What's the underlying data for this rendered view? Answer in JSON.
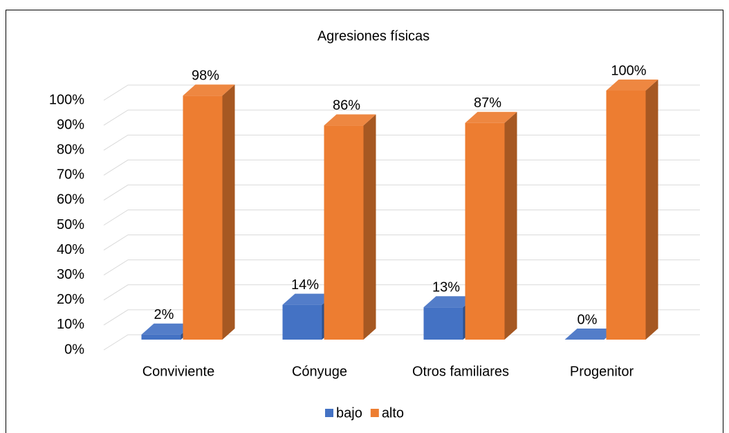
{
  "chart_data": {
    "type": "bar3d",
    "title": "Agresiones físicas",
    "categories": [
      "Conviviente",
      "Cónyuge",
      "Otros familiares",
      "Progenitor"
    ],
    "series": [
      {
        "name": "bajo",
        "color": "#4472c4",
        "values": [
          2,
          14,
          13,
          0
        ],
        "value_labels": [
          "2%",
          "14%",
          "13%",
          "0%"
        ]
      },
      {
        "name": "alto",
        "color": "#ed7d31",
        "values": [
          98,
          86,
          87,
          100
        ],
        "value_labels": [
          "98%",
          "86%",
          "87%",
          "100%"
        ]
      }
    ],
    "ylim": [
      0,
      100
    ],
    "yticks": [
      {
        "value": 0,
        "label": "0%"
      },
      {
        "value": 10,
        "label": "10%"
      },
      {
        "value": 20,
        "label": "20%"
      },
      {
        "value": 30,
        "label": "30%"
      },
      {
        "value": 40,
        "label": "40%"
      },
      {
        "value": 50,
        "label": "50%"
      },
      {
        "value": 60,
        "label": "60%"
      },
      {
        "value": 70,
        "label": "70%"
      },
      {
        "value": 80,
        "label": "80%"
      },
      {
        "value": 90,
        "label": "90%"
      },
      {
        "value": 100,
        "label": "100%"
      }
    ],
    "grid": true,
    "legend": "bottom"
  }
}
